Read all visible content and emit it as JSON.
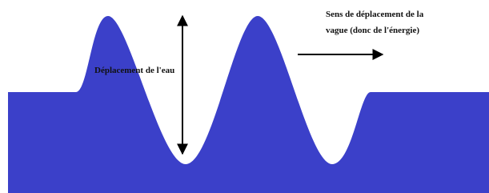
{
  "labels": {
    "direction_line1": "Sens de déplacement de la",
    "direction_line2": "vague (donc de l'énergie)",
    "displacement": "Déplacement de l'eau"
  }
}
